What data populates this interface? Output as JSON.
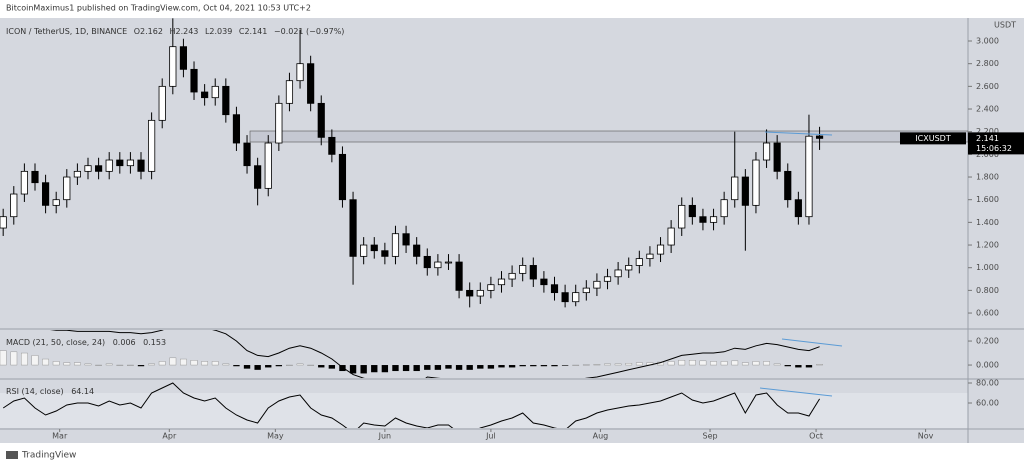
{
  "header": {
    "publisher": "BitcoinMaximus1 published on TradingView.com, Oct 04, 2021 10:53 UTC+2",
    "footer": "TradingView"
  },
  "chart_data": {
    "type": "candlestick",
    "symbol_line": "ICON / TetherUS, 1D, BINANCE",
    "ohlc_labels": [
      "O",
      "H",
      "L",
      "C"
    ],
    "change_label": "−0.021 (−0.97%)",
    "unit": "USDT",
    "ticker": "ICXUSDT",
    "countdown": "15:06:32",
    "up_color": "#ffffff",
    "down_color": "#000000",
    "open": [
      1.35,
      1.45,
      1.65,
      1.85,
      1.75,
      1.55,
      1.6,
      1.8,
      1.85,
      1.9,
      1.85,
      1.95,
      1.9,
      1.95,
      1.85,
      2.3,
      2.6,
      2.95,
      2.75,
      2.55,
      2.5,
      2.6,
      2.35,
      2.1,
      1.9,
      1.7,
      2.1,
      2.45,
      2.65,
      2.8,
      2.45,
      2.15,
      2.0,
      1.6,
      1.1,
      1.2,
      1.15,
      1.1,
      1.3,
      1.2,
      1.1,
      1.0,
      1.05,
      1.05,
      0.8,
      0.75,
      0.8,
      0.85,
      0.9,
      0.95,
      1.02,
      0.9,
      0.85,
      0.78,
      0.7,
      0.78,
      0.82,
      0.88,
      0.92,
      0.98,
      1.02,
      1.08,
      1.12,
      1.2,
      1.35,
      1.55,
      1.45,
      1.4,
      1.45,
      1.6,
      1.8,
      1.55,
      1.95,
      2.1,
      1.85,
      1.6,
      1.45,
      2.162
    ],
    "high": [
      1.52,
      1.72,
      1.92,
      1.92,
      1.82,
      1.67,
      1.87,
      1.92,
      1.97,
      1.97,
      2.02,
      2.02,
      2.02,
      2.02,
      2.37,
      2.67,
      3.2,
      3.02,
      2.82,
      2.62,
      2.67,
      2.67,
      2.42,
      2.17,
      1.97,
      2.17,
      2.52,
      2.72,
      3.1,
      2.87,
      2.52,
      2.22,
      2.07,
      1.67,
      1.27,
      1.27,
      1.22,
      1.37,
      1.37,
      1.27,
      1.17,
      1.12,
      1.12,
      1.12,
      0.87,
      0.87,
      0.92,
      0.97,
      1.02,
      1.09,
      1.09,
      0.97,
      0.92,
      0.85,
      0.85,
      0.89,
      0.95,
      0.99,
      1.05,
      1.09,
      1.15,
      1.19,
      1.27,
      1.42,
      1.62,
      1.62,
      1.52,
      1.52,
      1.67,
      2.2,
      1.87,
      2.02,
      2.22,
      2.17,
      1.92,
      1.67,
      2.35,
      2.243
    ],
    "low": [
      1.28,
      1.38,
      1.58,
      1.68,
      1.48,
      1.48,
      1.53,
      1.73,
      1.78,
      1.78,
      1.78,
      1.83,
      1.83,
      1.78,
      1.78,
      2.23,
      2.53,
      2.68,
      2.48,
      2.43,
      2.43,
      2.28,
      2.03,
      1.83,
      1.55,
      1.63,
      2.03,
      2.38,
      2.58,
      2.38,
      2.08,
      1.93,
      1.53,
      0.85,
      1.03,
      1.08,
      1.03,
      1.03,
      1.13,
      1.03,
      0.93,
      0.93,
      0.98,
      0.73,
      0.65,
      0.68,
      0.73,
      0.78,
      0.83,
      0.88,
      0.83,
      0.78,
      0.71,
      0.65,
      0.66,
      0.71,
      0.75,
      0.81,
      0.85,
      0.91,
      0.95,
      1.01,
      1.05,
      1.13,
      1.28,
      1.38,
      1.33,
      1.33,
      1.38,
      1.53,
      1.15,
      1.48,
      1.88,
      1.78,
      1.53,
      1.38,
      1.38,
      2.039
    ],
    "close": [
      1.45,
      1.65,
      1.85,
      1.75,
      1.55,
      1.6,
      1.8,
      1.85,
      1.9,
      1.85,
      1.95,
      1.9,
      1.95,
      1.85,
      2.3,
      2.6,
      2.95,
      2.75,
      2.55,
      2.5,
      2.6,
      2.35,
      2.1,
      1.9,
      1.7,
      2.1,
      2.45,
      2.65,
      2.8,
      2.45,
      2.15,
      2.0,
      1.6,
      1.1,
      1.2,
      1.15,
      1.1,
      1.3,
      1.2,
      1.1,
      1.0,
      1.05,
      1.05,
      0.8,
      0.75,
      0.8,
      0.85,
      0.9,
      0.95,
      1.02,
      0.9,
      0.85,
      0.78,
      0.7,
      0.78,
      0.82,
      0.88,
      0.92,
      0.98,
      1.02,
      1.08,
      1.12,
      1.2,
      1.35,
      1.55,
      1.45,
      1.4,
      1.45,
      1.6,
      1.8,
      1.55,
      1.95,
      2.1,
      1.85,
      1.6,
      1.45,
      2.16,
      2.141
    ],
    "ylim": [
      0.468,
      3.203
    ],
    "yticks": [
      {
        "value": 0.6,
        "label": "0.600"
      },
      {
        "value": 0.8,
        "label": "0.800"
      },
      {
        "value": 1.0,
        "label": "1.000"
      },
      {
        "value": 1.2,
        "label": "1.200"
      },
      {
        "value": 1.4,
        "label": "1.400"
      },
      {
        "value": 1.6,
        "label": "1.600"
      },
      {
        "value": 1.8,
        "label": "1.800"
      },
      {
        "value": 2.0,
        "label": "2.000"
      },
      {
        "value": 2.2,
        "label": "2.200"
      },
      {
        "value": 2.4,
        "label": "2.400"
      },
      {
        "value": 2.6,
        "label": "2.600"
      },
      {
        "value": 2.8,
        "label": "2.800"
      },
      {
        "value": 3.0,
        "label": "3.000"
      }
    ],
    "xlim": [
      -0.3,
      91
    ],
    "xticks": [
      {
        "value": 5.33,
        "label": "Mar"
      },
      {
        "value": 15.67,
        "label": "Apr"
      },
      {
        "value": 25.67,
        "label": "May"
      },
      {
        "value": 36,
        "label": "Jun"
      },
      {
        "value": 46,
        "label": "Jul"
      },
      {
        "value": 56.33,
        "label": "Aug"
      },
      {
        "value": 66.67,
        "label": "Sep"
      },
      {
        "value": 76.67,
        "label": "Oct"
      },
      {
        "value": 87,
        "label": "Nov"
      }
    ],
    "resistance_zone": [
      2.109,
      2.206
    ],
    "macd": {
      "label": "MACD (21, 50, close, 24)",
      "line_color": "#000000",
      "hist_up": "#f4f4f4",
      "hist_down": "#000000",
      "histogram": [
        0.12,
        0.11,
        0.1,
        0.08,
        0.05,
        0.03,
        0.02,
        0.02,
        0.01,
        0,
        0.01,
        0,
        0,
        -0.01,
        0.01,
        0.03,
        0.06,
        0.05,
        0.04,
        0.03,
        0.03,
        0.01,
        -0.01,
        -0.03,
        -0.04,
        -0.02,
        -0.01,
        0,
        0.01,
        0,
        -0.02,
        -0.03,
        -0.05,
        -0.07,
        -0.07,
        -0.06,
        -0.06,
        -0.05,
        -0.05,
        -0.05,
        -0.04,
        -0.04,
        -0.03,
        -0.04,
        -0.04,
        -0.03,
        -0.03,
        -0.02,
        -0.02,
        -0.01,
        -0.01,
        -0.01,
        -0.01,
        -0.005,
        0,
        0.003,
        0.005,
        0.01,
        0.01,
        0.015,
        0.02,
        0.02,
        0.025,
        0.03,
        0.04,
        0.04,
        0.035,
        0.03,
        0.03,
        0.035,
        0.02,
        0.03,
        0.03,
        0.01,
        -0.01,
        -0.02,
        -0.02,
        0.006
      ],
      "macd": [
        0.35,
        0.33,
        0.32,
        0.31,
        0.3,
        0.29,
        0.29,
        0.28,
        0.28,
        0.28,
        0.28,
        0.27,
        0.27,
        0.26,
        0.27,
        0.29,
        0.33,
        0.34,
        0.33,
        0.31,
        0.29,
        0.26,
        0.2,
        0.12,
        0.08,
        0.07,
        0.1,
        0.14,
        0.16,
        0.14,
        0.1,
        0.05,
        -0.02,
        -0.08,
        -0.11,
        -0.13,
        -0.15,
        -0.16,
        -0.17,
        -0.17,
        -0.1,
        -0.11,
        -0.12,
        -0.14,
        -0.15,
        -0.16,
        -0.16,
        -0.16,
        -0.15,
        -0.14,
        -0.14,
        -0.14,
        -0.15,
        -0.15,
        -0.13,
        -0.11,
        -0.1,
        -0.08,
        -0.06,
        -0.04,
        -0.02,
        0,
        0.02,
        0.05,
        0.08,
        0.09,
        0.1,
        0.1,
        0.11,
        0.14,
        0.13,
        0.16,
        0.18,
        0.17,
        0.15,
        0.13,
        0.12,
        0.153
      ],
      "ylim": [
        -0.108,
        0.292
      ],
      "yticks": [
        {
          "value": 0.2,
          "label": "0.200"
        },
        {
          "value": 0,
          "label": "0.000"
        }
      ]
    },
    "rsi": {
      "label": "RSI (14, close)",
      "line_color": "#000000",
      "values": [
        55,
        62,
        65,
        55,
        48,
        52,
        58,
        60,
        60,
        57,
        62,
        58,
        60,
        55,
        70,
        75,
        80,
        70,
        65,
        62,
        65,
        55,
        48,
        43,
        40,
        55,
        62,
        66,
        68,
        55,
        48,
        45,
        38,
        30,
        40,
        38,
        37,
        45,
        40,
        37,
        35,
        38,
        38,
        30,
        30,
        35,
        38,
        42,
        45,
        50,
        40,
        38,
        35,
        33,
        42,
        45,
        50,
        53,
        55,
        57,
        58,
        60,
        62,
        66,
        70,
        63,
        60,
        62,
        66,
        70,
        50,
        68,
        70,
        58,
        50,
        50,
        47,
        64.14
      ],
      "ylim": [
        35,
        83
      ],
      "yticks": [
        {
          "value": 80,
          "label": "80.00"
        },
        {
          "value": 60,
          "label": "60.00"
        }
      ]
    }
  }
}
